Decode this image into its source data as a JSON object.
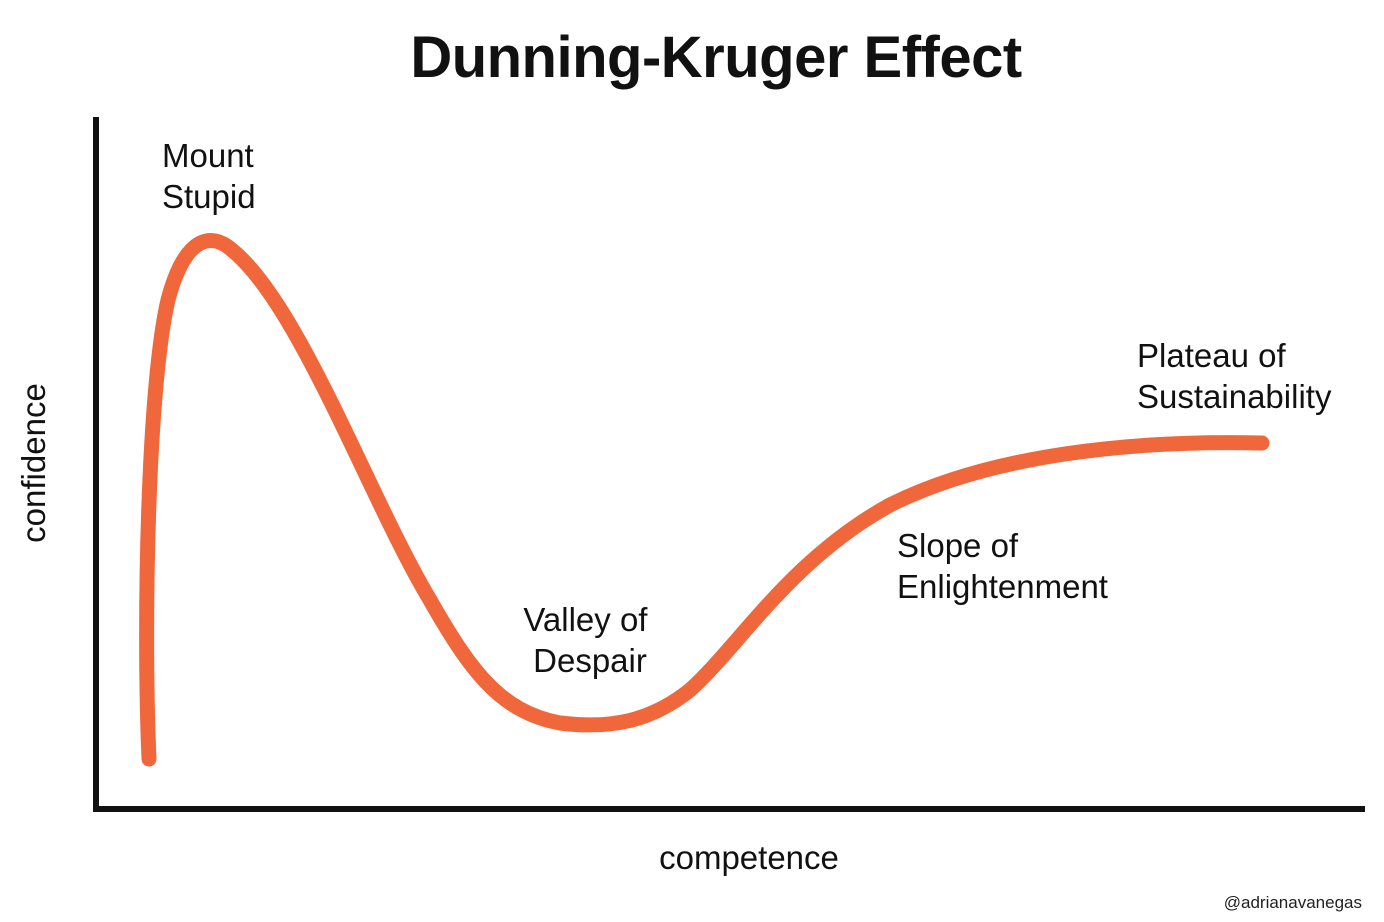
{
  "title": "Dunning-Kruger Effect",
  "axes": {
    "x_label": "competence",
    "y_label": "confidence"
  },
  "stages": {
    "mount_stupid": [
      "Mount",
      "Stupid"
    ],
    "valley_of_despair": [
      "Valley of",
      "Despair"
    ],
    "slope_of_enlightenment": [
      "Slope of",
      "Enlightenment"
    ],
    "plateau_of_sustainability": [
      "Plateau of",
      "Sustainability"
    ]
  },
  "credit": "@adrianavanegas",
  "colors": {
    "curve": "#f0673b",
    "axes": "#111111",
    "text": "#111111",
    "background": "#ffffff"
  }
}
